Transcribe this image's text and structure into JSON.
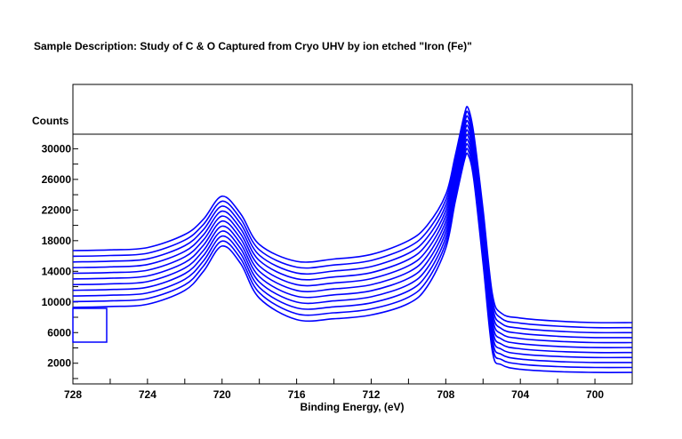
{
  "chart_data": {
    "type": "line",
    "title": "Sample Description:  Study of C & O Captured from Cryo UHV by ion etched \"Iron (Fe)\"",
    "xlabel": "Binding Energy, (eV)",
    "ylabel": "Counts",
    "xlim": [
      728,
      698
    ],
    "ylim": [
      -700,
      38400
    ],
    "x_reversed": true,
    "grid": false,
    "legend": "none",
    "line_color": "#0000ff",
    "x_ticks": [
      "728",
      "724",
      "720",
      "716",
      "712",
      "708",
      "704",
      "700"
    ],
    "y_ticks": [
      "2000",
      "6000",
      "10000",
      "14000",
      "18000",
      "22000",
      "26000",
      "30000"
    ],
    "x": [
      728,
      726,
      724,
      722,
      721,
      720,
      719,
      718,
      716,
      714,
      712,
      710,
      709,
      708,
      707.5,
      707,
      706.8,
      706.5,
      706,
      705.5,
      705,
      704,
      702,
      700,
      698
    ],
    "series": [
      {
        "values": [
          16700,
          16800,
          17100,
          18800,
          20800,
          23800,
          21500,
          17500,
          15300,
          15600,
          16200,
          18000,
          20000,
          24000,
          29000,
          34500,
          35300,
          32000,
          22000,
          11000,
          8500,
          7900,
          7500,
          7300,
          7300
        ]
      },
      {
        "values": [
          15960,
          16060,
          16360,
          18070,
          20120,
          23150,
          20850,
          16800,
          14540,
          14820,
          15410,
          17180,
          19200,
          23300,
          28400,
          33900,
          34690,
          31400,
          21300,
          10250,
          7830,
          7230,
          6840,
          6650,
          6650
        ]
      },
      {
        "values": [
          15220,
          15320,
          15620,
          17340,
          19440,
          22500,
          20200,
          16100,
          13780,
          14040,
          14620,
          16360,
          18400,
          22600,
          27800,
          33300,
          34080,
          30800,
          20600,
          9500,
          7160,
          6560,
          6180,
          6000,
          6000
        ]
      },
      {
        "values": [
          14480,
          14580,
          14880,
          16610,
          18760,
          21850,
          19550,
          15400,
          13020,
          13260,
          13830,
          15540,
          17600,
          21900,
          27200,
          32700,
          33470,
          30200,
          19900,
          8750,
          6490,
          5890,
          5520,
          5350,
          5350
        ]
      },
      {
        "values": [
          13740,
          13840,
          14140,
          15880,
          18080,
          21200,
          18900,
          14700,
          12260,
          12480,
          13040,
          14720,
          16800,
          21200,
          26600,
          32100,
          32860,
          29600,
          19200,
          8000,
          5820,
          5220,
          4860,
          4700,
          4700
        ]
      },
      {
        "values": [
          13000,
          13100,
          13400,
          15150,
          17400,
          20550,
          18250,
          14000,
          11500,
          11700,
          12250,
          13900,
          16000,
          20500,
          26000,
          31500,
          32250,
          29000,
          18500,
          7250,
          5150,
          4550,
          4200,
          4050,
          4050
        ]
      },
      {
        "values": [
          12260,
          12360,
          12660,
          14420,
          16720,
          19900,
          17600,
          13300,
          10740,
          10920,
          11460,
          13080,
          15200,
          19800,
          25400,
          30900,
          31640,
          28400,
          17800,
          6500,
          4480,
          3880,
          3540,
          3400,
          3400
        ]
      },
      {
        "values": [
          11520,
          11620,
          11920,
          13690,
          16040,
          19250,
          16950,
          12600,
          9980,
          10140,
          10670,
          12260,
          14400,
          19100,
          24800,
          30300,
          31030,
          27800,
          17100,
          5750,
          3810,
          3210,
          2880,
          2750,
          2750
        ]
      },
      {
        "values": [
          10780,
          10880,
          11180,
          12960,
          15360,
          18600,
          16300,
          11900,
          9220,
          9360,
          9880,
          11440,
          13600,
          18400,
          24200,
          29700,
          30420,
          27200,
          16400,
          5000,
          3140,
          2540,
          2220,
          2100,
          2100
        ]
      },
      {
        "values": [
          10040,
          10140,
          10440,
          12230,
          14680,
          17950,
          15650,
          11200,
          8460,
          8580,
          9090,
          10620,
          12800,
          17700,
          23600,
          29100,
          29810,
          26600,
          15700,
          4250,
          2470,
          1870,
          1560,
          1450,
          1450
        ]
      },
      {
        "values": [
          9300,
          9400,
          9700,
          11500,
          14000,
          17300,
          15000,
          10500,
          7700,
          7800,
          8300,
          9800,
          12000,
          17000,
          23000,
          28500,
          29200,
          26000,
          15000,
          3500,
          1800,
          1200,
          900,
          800,
          800
        ]
      }
    ]
  }
}
